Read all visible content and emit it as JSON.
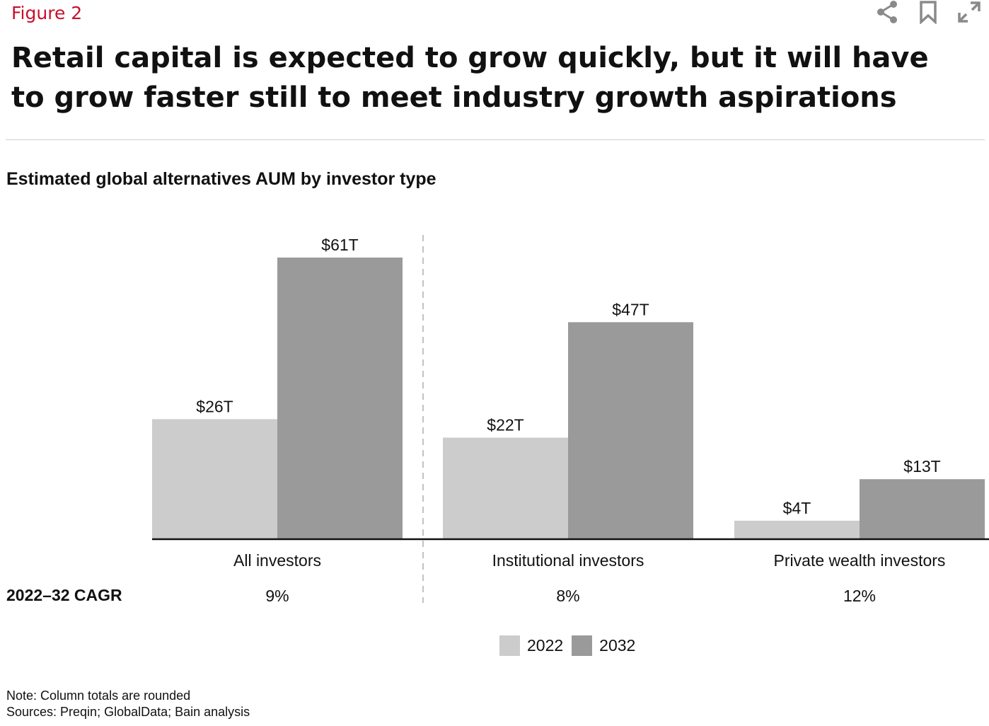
{
  "header": {
    "figure_label": "Figure 2",
    "headline": "Retail capital is expected to grow quickly, but it will have to grow faster still to meet industry growth aspirations"
  },
  "toolbar": {
    "share_icon": "share-icon",
    "bookmark_icon": "bookmark-icon",
    "expand_icon": "expand-icon"
  },
  "colors": {
    "accent": "#c8102e",
    "bar_2022": "#cccccc",
    "bar_2032": "#9a9a9a"
  },
  "chart_data": {
    "type": "bar",
    "title": "Estimated global alternatives AUM by investor type",
    "categories": [
      "All investors",
      "Institutional investors",
      "Private wealth investors"
    ],
    "series": [
      {
        "name": "2022",
        "values": [
          26,
          22,
          4
        ],
        "labels": [
          "$26T",
          "$22T",
          "$4T"
        ]
      },
      {
        "name": "2032",
        "values": [
          61,
          47,
          13
        ],
        "labels": [
          "$61T",
          "$47T",
          "$13T"
        ]
      }
    ],
    "ylim": [
      0,
      61
    ],
    "grid": false,
    "legend": "bottom",
    "cagr_row": {
      "label": "2022–32 CAGR",
      "values": [
        "9%",
        "8%",
        "12%"
      ]
    }
  },
  "footer": {
    "note": "Note: Column totals are rounded",
    "sources": "Sources: Preqin; GlobalData; Bain analysis"
  }
}
